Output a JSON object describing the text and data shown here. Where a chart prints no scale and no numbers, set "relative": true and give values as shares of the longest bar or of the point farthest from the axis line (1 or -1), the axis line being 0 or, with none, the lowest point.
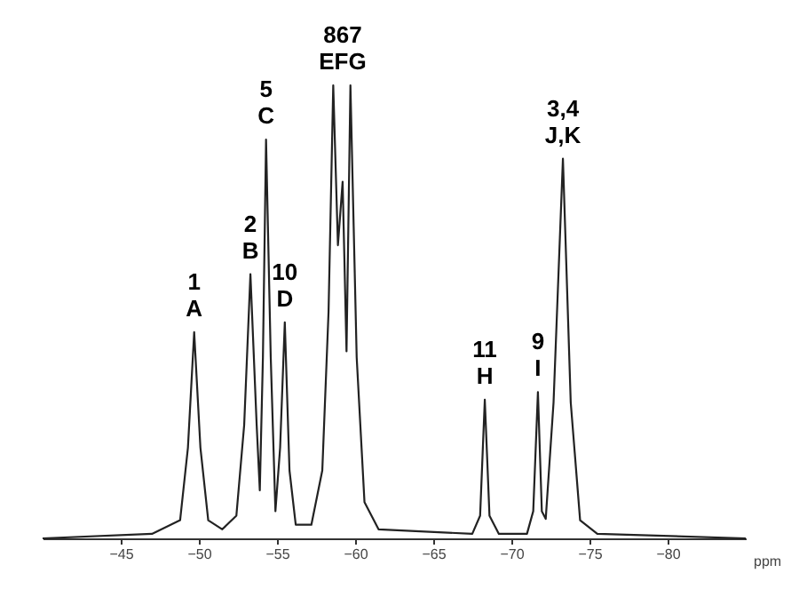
{
  "chart_data": {
    "type": "line",
    "relative": true,
    "xlabel": "ppm",
    "xlim": [
      -40,
      -85
    ],
    "xticks": [
      -45,
      -50,
      -55,
      -60,
      -65,
      -70,
      -75,
      -80
    ],
    "grid": false,
    "marker": "none",
    "line_style": "solid",
    "x": [
      -40,
      -47,
      -48.8,
      -49.3,
      -49.7,
      -50.1,
      -50.6,
      -51.5,
      -52.4,
      -52.9,
      -53.3,
      -53.7,
      -53.9,
      -54.1,
      -54.3,
      -54.6,
      -54.9,
      -55.2,
      -55.5,
      -55.8,
      -56.2,
      -57.2,
      -57.9,
      -58.3,
      -58.6,
      -58.9,
      -59.2,
      -59.45,
      -59.7,
      -60.1,
      -60.6,
      -61.5,
      -67.5,
      -68.0,
      -68.3,
      -68.6,
      -69.2,
      -71.0,
      -71.4,
      -71.7,
      -71.95,
      -72.2,
      -72.7,
      -73.3,
      -73.8,
      -74.4,
      -75.5,
      -85
    ],
    "series": [
      {
        "color": "#222222",
        "values": [
          0,
          0.01,
          0.04,
          0.2,
          0.455,
          0.2,
          0.04,
          0.02,
          0.05,
          0.25,
          0.583,
          0.25,
          0.106,
          0.4,
          0.88,
          0.4,
          0.06,
          0.2,
          0.477,
          0.15,
          0.03,
          0.03,
          0.15,
          0.5,
          1.0,
          0.647,
          0.787,
          0.413,
          1.0,
          0.4,
          0.08,
          0.02,
          0.01,
          0.05,
          0.306,
          0.05,
          0.01,
          0.01,
          0.06,
          0.323,
          0.06,
          0.043,
          0.3,
          0.838,
          0.3,
          0.04,
          0.01,
          0
        ]
      }
    ],
    "annotations": [
      {
        "text": "1\nA",
        "x": -49.7,
        "y": 0.455
      },
      {
        "text": "2\nB",
        "x": -53.3,
        "y": 0.583
      },
      {
        "text": "5\nC",
        "x": -54.3,
        "y": 0.88
      },
      {
        "text": "10\nD",
        "x": -55.5,
        "y": 0.477
      },
      {
        "text": "867\nEFG",
        "x": -59.2,
        "y": 1.0
      },
      {
        "text": "11\nH",
        "x": -68.3,
        "y": 0.306
      },
      {
        "text": "9\nI",
        "x": -71.7,
        "y": 0.323
      },
      {
        "text": "3,4\nJ,K",
        "x": -73.3,
        "y": 0.838
      }
    ]
  }
}
